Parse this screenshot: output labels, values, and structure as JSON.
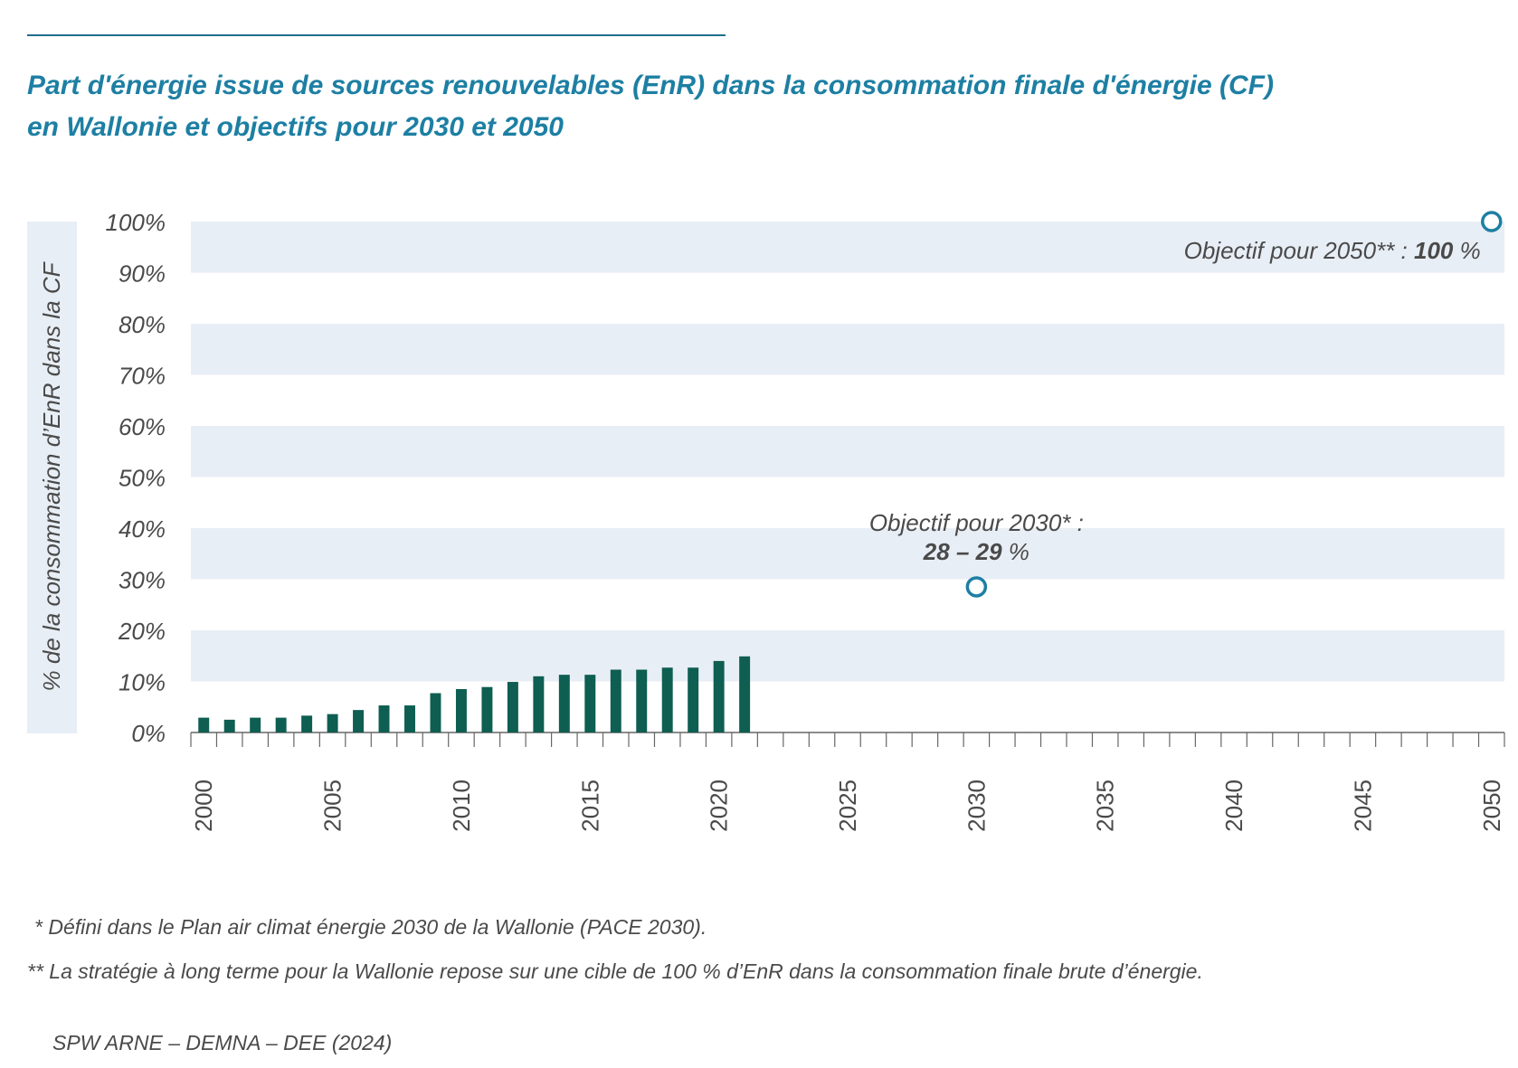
{
  "title_line1": "Part d'énergie issue de sources renouvelables (EnR) dans la consommation finale d'énergie (CF)",
  "title_line2": "en Wallonie et objectifs pour 2030 et 2050",
  "footnote1": "* Défini dans le Plan air climat énergie 2030 de la Wallonie (PACE 2030).",
  "footnote2": "** La stratégie à long terme pour la Wallonie repose sur une cible de 100 % d’EnR dans la consommation finale brute d’énergie.",
  "source": "SPW ARNE – DEMNA – DEE (2024)",
  "colors": {
    "bar": "#0e5e52",
    "band": "#e8eef5",
    "target": "#1d7fa3",
    "title": "#1d7fa3",
    "text": "#4a4a4a"
  },
  "chart_data": {
    "type": "bar",
    "ylabel": "% de la consommation d’EnR dans la CF",
    "ylim": [
      0,
      100
    ],
    "yticks": [
      "0%",
      "10%",
      "20%",
      "30%",
      "40%",
      "50%",
      "60%",
      "70%",
      "80%",
      "90%",
      "100%"
    ],
    "xlim": [
      2000,
      2050
    ],
    "xticks": [
      "2000",
      "2005",
      "2010",
      "2015",
      "2020",
      "2025",
      "2030",
      "2035",
      "2040",
      "2045",
      "2050"
    ],
    "grid": "alternating horizontal bands",
    "categories": [
      2000,
      2001,
      2002,
      2003,
      2004,
      2005,
      2006,
      2007,
      2008,
      2009,
      2010,
      2011,
      2012,
      2013,
      2014,
      2015,
      2016,
      2017,
      2018,
      2019,
      2020,
      2021
    ],
    "values": [
      2.9,
      2.5,
      2.9,
      2.9,
      3.3,
      3.6,
      4.4,
      5.3,
      5.3,
      7.7,
      8.5,
      8.9,
      9.9,
      11.0,
      11.3,
      11.3,
      12.3,
      12.3,
      12.7,
      12.7,
      14.0,
      14.9
    ],
    "targets": [
      {
        "year": 2030,
        "value": 28.5,
        "label_line1": "Objectif pour 2030* :",
        "value_label": "28 – 29",
        "unit": "%"
      },
      {
        "year": 2050,
        "value": 100,
        "label_line1": "Objectif pour 2050** : ",
        "value_label": "100",
        "unit": "%"
      }
    ]
  }
}
